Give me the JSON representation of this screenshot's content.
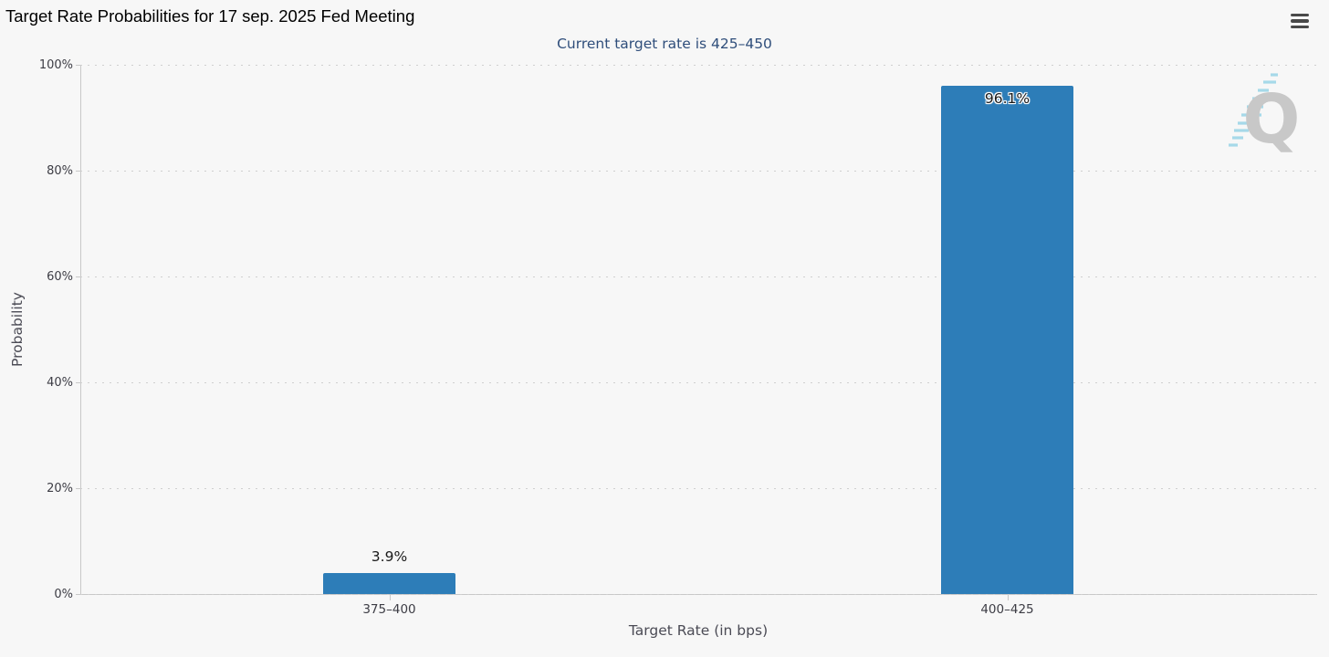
{
  "header": {
    "title": "Target Rate Probabilities for 17 sep. 2025 Fed Meeting",
    "menu_icon": "hamburger-icon"
  },
  "chart_data": {
    "type": "bar",
    "subtitle": "Current target rate is 425–450",
    "categories": [
      "375–400",
      "400–425"
    ],
    "values": [
      3.9,
      96.1
    ],
    "value_labels": [
      "3.9%",
      "96.1%"
    ],
    "xlabel": "Target Rate (in bps)",
    "ylabel": "Probability",
    "ylim": [
      0,
      100
    ],
    "yticks": [
      "0%",
      "20%",
      "40%",
      "60%",
      "80%",
      "100%"
    ],
    "legend": "none",
    "grid": "horizontal-dotted",
    "bar_color": "#2d7db8",
    "subtitle_color": "#2f4e7b",
    "watermark_letter": "Q",
    "watermark_q_color": "#c8c8c8",
    "watermark_dash_color": "#a6d9e9"
  }
}
